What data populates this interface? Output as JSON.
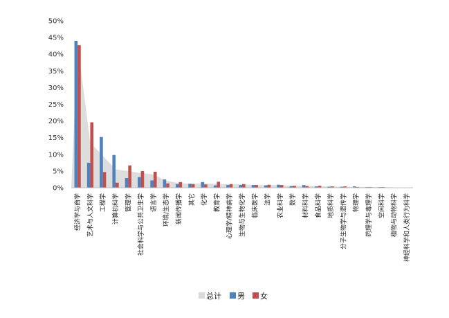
{
  "chart_data": {
    "type": "bar",
    "categories": [
      "经济学与商学",
      "艺术与人文科学",
      "工程学",
      "计算机科学",
      "管理学",
      "社会科学与公共卫生学",
      "语言学",
      "环境/生态学",
      "新闻传播学",
      "其它",
      "化学",
      "教育学",
      "心理学/精神病学",
      "生物与生物化学",
      "临床医学",
      "法学",
      "农业科学",
      "数学",
      "材料科学",
      "食品科学",
      "地质科学",
      "分子生物学与遗传学",
      "物理学",
      "药理学与毒理学",
      "空间科学",
      "植物与动物科学",
      "神经科学和人类行为科学"
    ],
    "series": [
      {
        "name": "总计",
        "type": "area",
        "color": "#d9d9d9",
        "values": [
          43.3,
          13.5,
          9.6,
          5.5,
          5.0,
          4.4,
          4.0,
          2.1,
          1.4,
          1.2,
          1.3,
          1.2,
          1.0,
          1.0,
          0.8,
          0.8,
          0.8,
          0.6,
          0.6,
          0.5,
          0.4,
          0.3,
          0.3,
          0.2,
          0.2,
          0.1,
          0.1
        ]
      },
      {
        "name": "男",
        "type": "bar",
        "color": "#4f81bd",
        "values": [
          44.0,
          7.5,
          15.2,
          9.8,
          2.9,
          3.2,
          2.2,
          2.5,
          1.1,
          1.2,
          1.7,
          0.7,
          0.8,
          0.8,
          0.8,
          0.7,
          0.9,
          0.5,
          0.8,
          0.4,
          0.3,
          0.3,
          0.4,
          0.2,
          0.2,
          0.1,
          0.1
        ]
      },
      {
        "name": "女",
        "type": "bar",
        "color": "#c0504d",
        "values": [
          42.7,
          19.6,
          4.7,
          1.5,
          6.7,
          5.0,
          4.8,
          1.3,
          1.7,
          1.1,
          1.0,
          1.8,
          1.1,
          1.1,
          0.8,
          0.9,
          0.8,
          0.6,
          0.5,
          0.6,
          0.4,
          0.4,
          0.2,
          0.2,
          0.2,
          0.1,
          0.1
        ]
      }
    ],
    "yticks": [
      "0%",
      "5%",
      "10%",
      "15%",
      "20%",
      "25%",
      "30%",
      "35%",
      "40%",
      "45%",
      "50%"
    ],
    "ylim": [
      0,
      50
    ],
    "grid": false,
    "legend_position": "bottom"
  }
}
